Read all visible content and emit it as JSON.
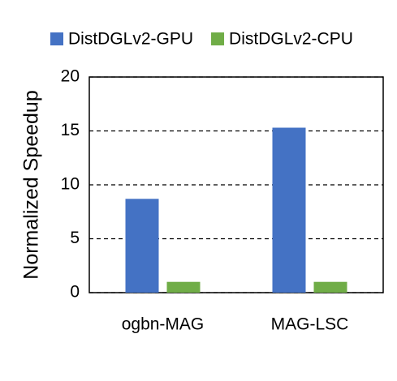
{
  "chart_data": {
    "type": "bar",
    "y_label": "Normalized Speedup",
    "categories": [
      "ogbn-MAG",
      "MAG-LSC"
    ],
    "series": [
      {
        "name": "DistDGLv2-GPU",
        "color": "#4472c4",
        "values": [
          8.7,
          15.3
        ]
      },
      {
        "name": "DistDGLv2-CPU",
        "color": "#70ad47",
        "values": [
          1,
          1
        ]
      }
    ],
    "ylim": [
      0,
      20
    ],
    "yticks": [
      0,
      5,
      10,
      15,
      20
    ],
    "grid": true,
    "legend": "top"
  }
}
